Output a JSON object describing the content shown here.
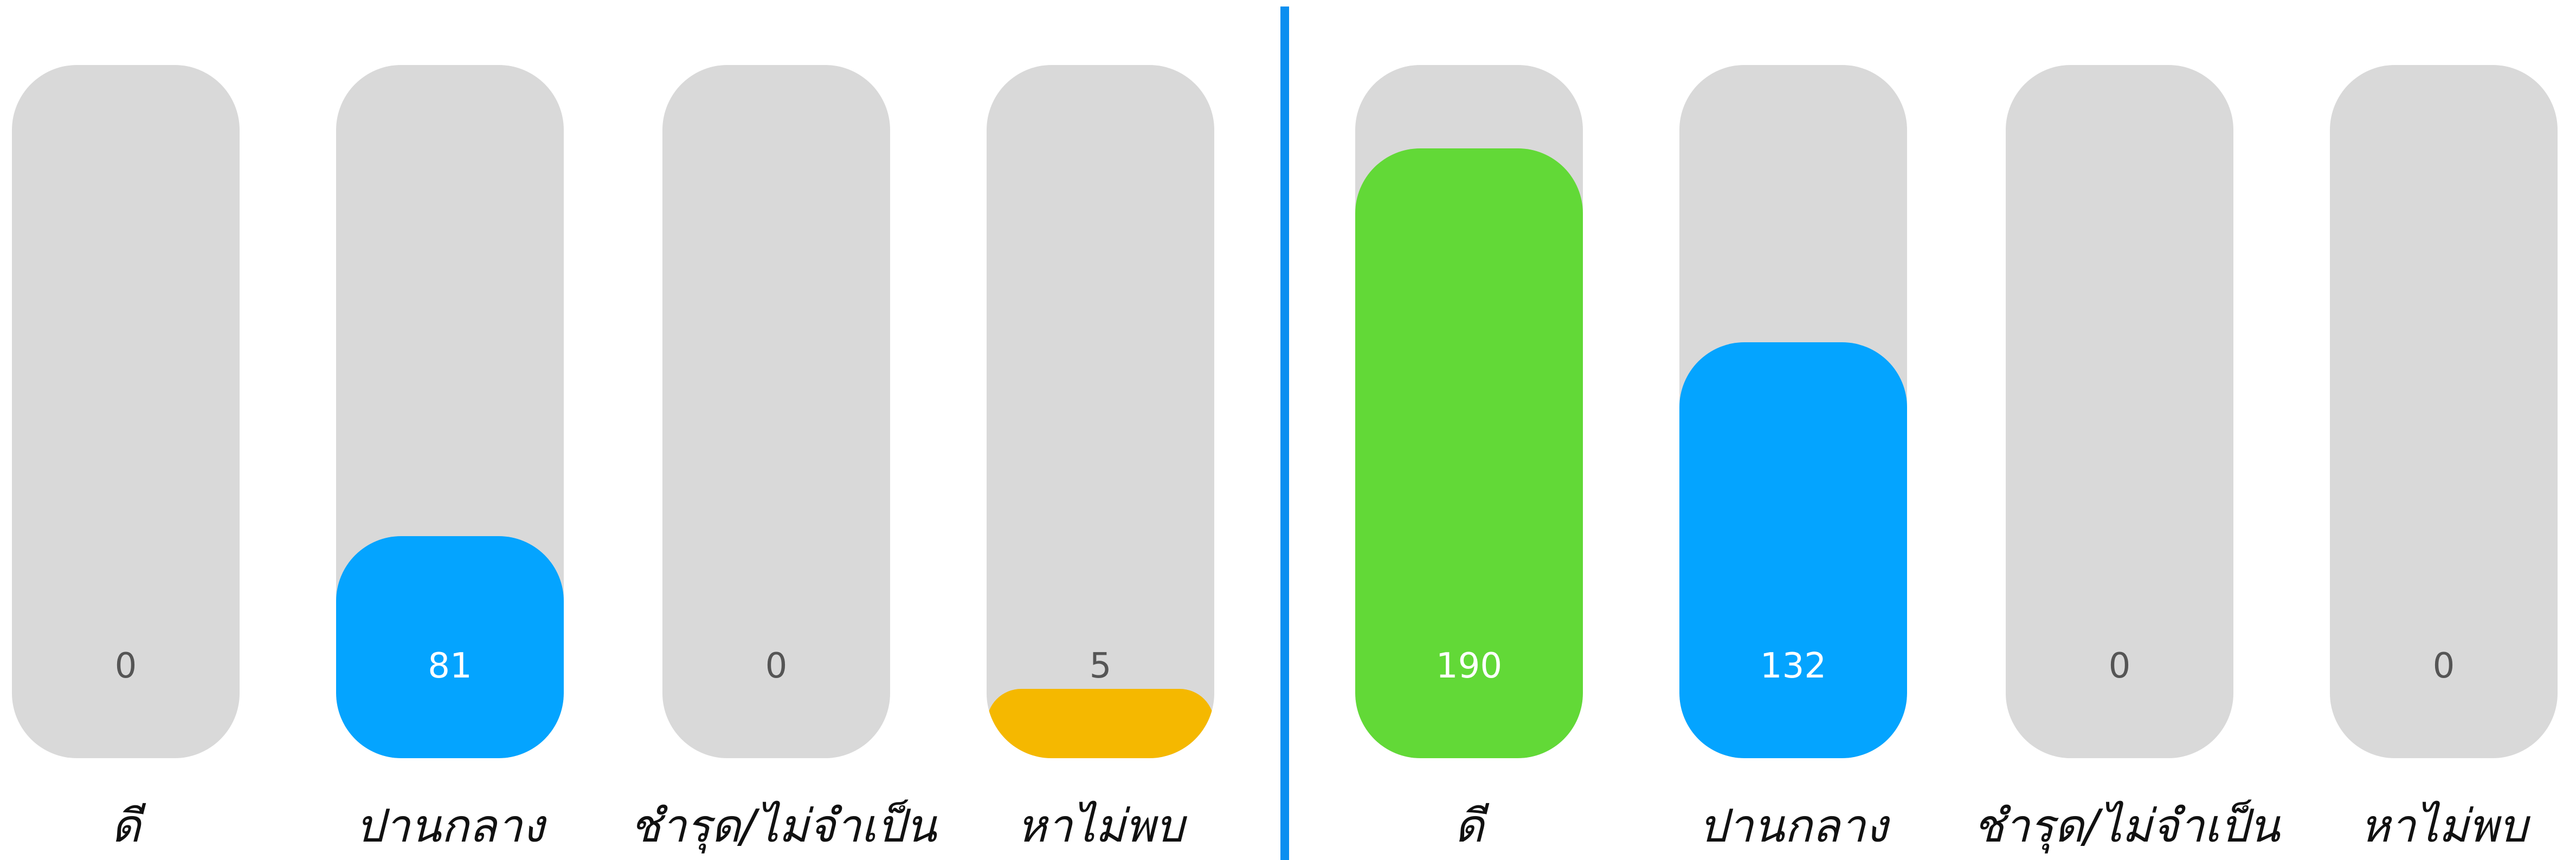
{
  "groups": [
    {
      "bars": [
        {
          "label": "ดี",
          "value": "0",
          "level": 0,
          "color": ""
        },
        {
          "label": "ปานกลาง",
          "value": "81",
          "level": 0.32,
          "color": "#04a4ff"
        },
        {
          "label": "ชำรุด/ไม่จำเป็น",
          "value": "0",
          "level": 0,
          "color": ""
        },
        {
          "label": "หาไม่พบ",
          "value": "5",
          "level": 0.1,
          "color": "#f5b800"
        }
      ]
    },
    {
      "bars": [
        {
          "label": "ดี",
          "value": "190",
          "level": 0.88,
          "color": "#62d937"
        },
        {
          "label": "ปานกลาง",
          "value": "132",
          "level": 0.6,
          "color": "#04a4ff"
        },
        {
          "label": "ชำรุด/ไม่จำเป็น",
          "value": "0",
          "level": 0,
          "color": ""
        },
        {
          "label": "หาไม่พบ",
          "value": "0",
          "level": 0,
          "color": ""
        }
      ]
    }
  ],
  "colors": {
    "track": "#d9d9d9",
    "divider": "#0a8ff0"
  }
}
